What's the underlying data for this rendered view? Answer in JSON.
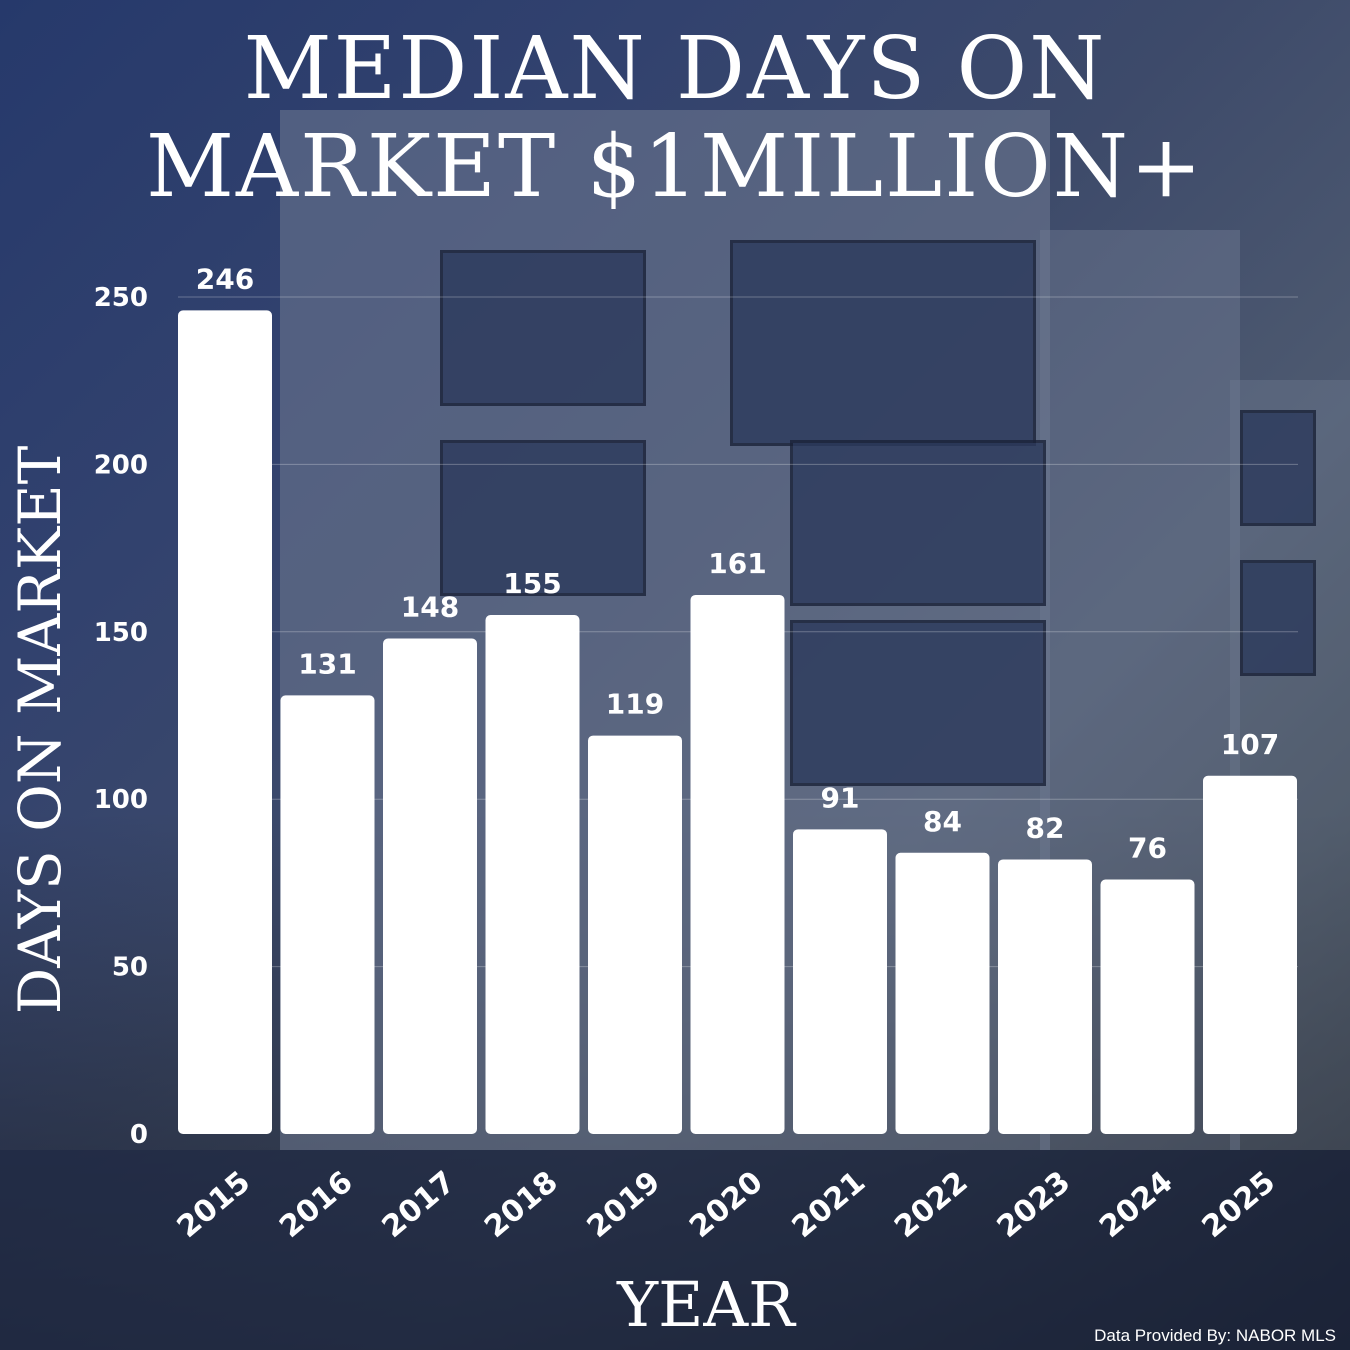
{
  "title": "MEDIAN DAYS ON\nMARKET $1MILLION+",
  "credit": "Data Provided By: NABOR MLS",
  "chart_data": {
    "type": "bar",
    "title": "MEDIAN DAYS ON MARKET $1MILLION+",
    "xlabel": "YEAR",
    "ylabel": "DAYS ON MARKET",
    "categories": [
      "2015",
      "2016",
      "2017",
      "2018",
      "2019",
      "2020",
      "2021",
      "2022",
      "2023",
      "2024",
      "2025"
    ],
    "values": [
      246,
      131,
      148,
      155,
      119,
      161,
      91,
      84,
      82,
      76,
      107
    ],
    "ylim": [
      0,
      250
    ],
    "yticks": [
      0,
      50,
      100,
      150,
      200,
      250
    ],
    "grid": true,
    "bar_color": "#ffffff"
  }
}
